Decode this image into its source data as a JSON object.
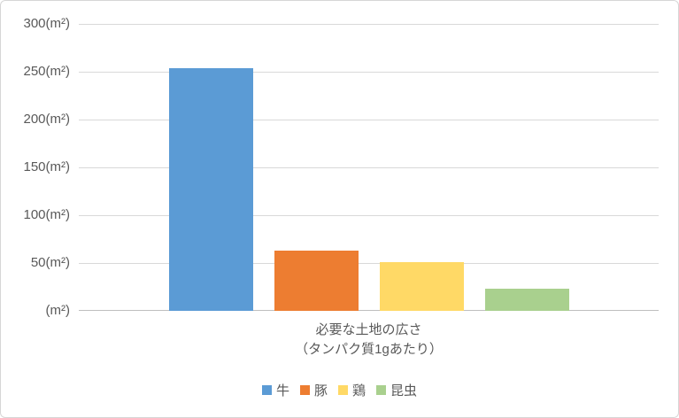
{
  "chart_data": {
    "type": "bar",
    "title": "",
    "categories": [
      "牛",
      "豚",
      "鶏",
      "昆虫"
    ],
    "series": [
      {
        "name": "牛",
        "value": 254,
        "color": "#5B9BD5"
      },
      {
        "name": "豚",
        "value": 63,
        "color": "#ED7D31"
      },
      {
        "name": "鶏",
        "value": 51,
        "color": "#FFD966"
      },
      {
        "name": "昆虫",
        "value": 23,
        "color": "#A9D08E"
      }
    ],
    "ylim": [
      0,
      300
    ],
    "ytick_step": 50,
    "yticks": [
      {
        "value": 300,
        "label": "300(m²)"
      },
      {
        "value": 250,
        "label": "250(m²)"
      },
      {
        "value": 200,
        "label": "200(m²)"
      },
      {
        "value": 150,
        "label": "150(m²)"
      },
      {
        "value": 100,
        "label": "100(m²)"
      },
      {
        "value": 50,
        "label": "50(m²)"
      },
      {
        "value": 0,
        "label": "(m²)"
      }
    ],
    "xlabel_lines": [
      "必要な土地の広さ",
      "（タンパク質1gあたり）"
    ],
    "grid": true,
    "legend_position": "bottom",
    "colors": {
      "gridline": "#D9D9D9",
      "axis_line": "#BFBFBF",
      "text": "#595959",
      "border": "#D6D6D6",
      "background": "#FFFFFF"
    }
  }
}
